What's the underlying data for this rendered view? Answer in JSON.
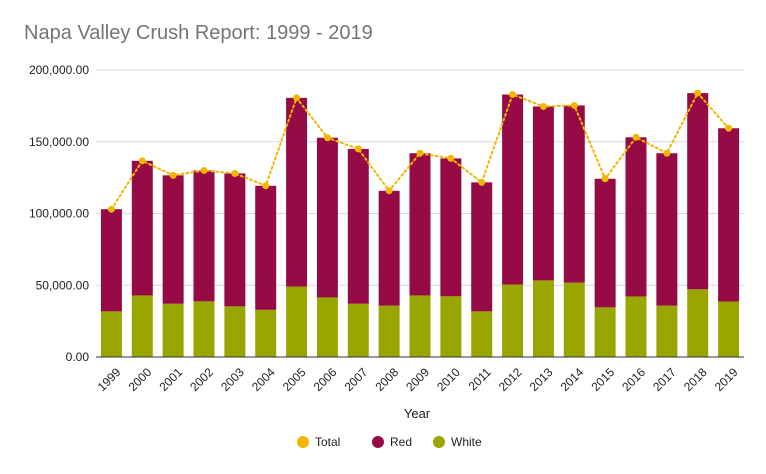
{
  "chart_data": {
    "type": "bar",
    "stacked": true,
    "title": "Napa Valley Crush Report: 1999 - 2019",
    "xlabel": "Year",
    "ylabel": "",
    "ylim": [
      0,
      200000
    ],
    "yticks": [
      "0.00",
      "50,000.00",
      "100,000.00",
      "150,000.00",
      "200,000.00"
    ],
    "ytick_values": [
      0,
      50000,
      100000,
      150000,
      200000
    ],
    "grid": true,
    "legend_position": "bottom",
    "categories": [
      "1999",
      "2000",
      "2001",
      "2002",
      "2003",
      "2004",
      "2005",
      "2006",
      "2007",
      "2008",
      "2009",
      "2010",
      "2011",
      "2012",
      "2013",
      "2014",
      "2015",
      "2016",
      "2017",
      "2018",
      "2019"
    ],
    "series": [
      {
        "name": "White",
        "type": "bar",
        "color": "#99a500",
        "values": [
          31800,
          42900,
          37100,
          38800,
          35300,
          32900,
          49100,
          41500,
          37100,
          35800,
          42900,
          42300,
          31800,
          50500,
          53400,
          51800,
          34600,
          42200,
          35800,
          47200,
          38700
        ]
      },
      {
        "name": "Red",
        "type": "bar",
        "color": "#960a45",
        "values": [
          71200,
          93800,
          89500,
          91200,
          92600,
          86400,
          131500,
          111300,
          107900,
          80000,
          99100,
          96100,
          89900,
          132400,
          121200,
          123500,
          89600,
          110900,
          106200,
          136700,
          120700
        ]
      },
      {
        "name": "Total",
        "type": "line",
        "color": "#f2b600",
        "style": "dotted",
        "values": [
          103000,
          136700,
          126600,
          130000,
          127900,
          119300,
          180600,
          152800,
          145000,
          115800,
          142000,
          138400,
          121700,
          182900,
          174600,
          175300,
          124200,
          153100,
          142000,
          183900,
          159400
        ]
      }
    ]
  }
}
